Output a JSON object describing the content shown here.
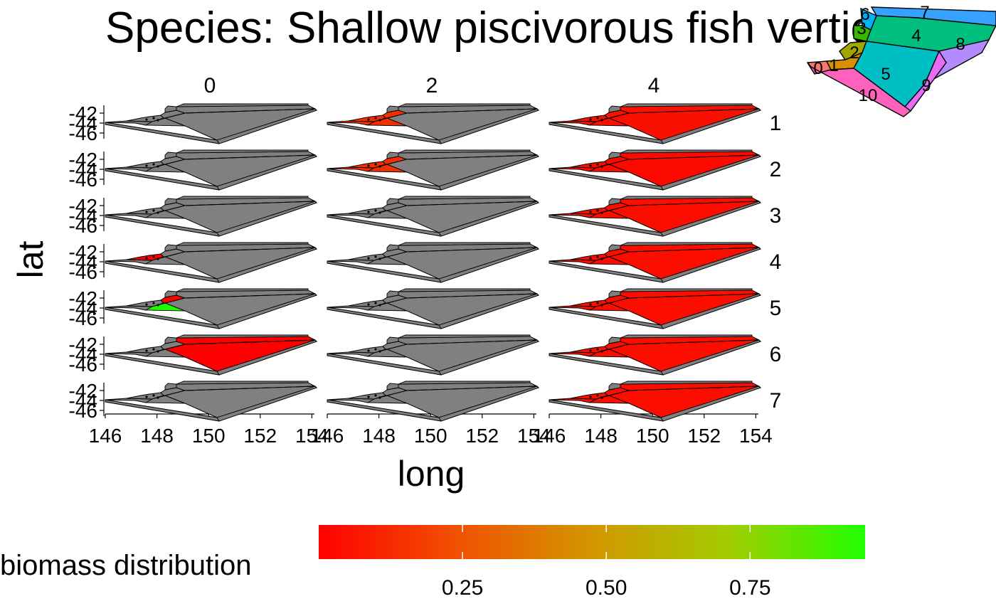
{
  "chart_data": {
    "type": "map",
    "title": "Species: Shallow piscivorous fish vertical",
    "xlabel": "long",
    "ylabel": "lat",
    "x_ticks": [
      "146",
      "148",
      "150",
      "152",
      "154"
    ],
    "y_ticks": [
      "-42",
      "-44",
      "-46"
    ],
    "xlim": [
      146,
      154.1
    ],
    "ylim": [
      -46.6,
      -41.2
    ],
    "facet_columns": [
      "0",
      "2",
      "4"
    ],
    "facet_rows": [
      "1",
      "2",
      "3",
      "4",
      "5",
      "6",
      "7"
    ],
    "legend": {
      "title": "biomass distribution",
      "placement": "bottom",
      "range": [
        0,
        0.95
      ],
      "ticks": [
        "0.25",
        "0.50",
        "0.75"
      ],
      "tick_values": [
        0.25,
        0.5,
        0.75
      ],
      "colors": [
        "#ff0000",
        "#00ff00"
      ]
    },
    "na_color": "#808080",
    "cells": [
      {
        "column": "0",
        "row": "1",
        "boxes": {}
      },
      {
        "column": "2",
        "row": "1",
        "boxes": {
          "0": 0.15,
          "1": 0.15,
          "2": 0.15,
          "3": 0.15
        }
      },
      {
        "column": "4",
        "row": "1",
        "boxes": {
          "0": 0.05,
          "1": 0.05,
          "2": 0.05,
          "3": 0.05,
          "4": 0.05,
          "5": 0.05
        }
      },
      {
        "column": "0",
        "row": "2",
        "boxes": {}
      },
      {
        "column": "2",
        "row": "2",
        "boxes": {
          "0": 0.15,
          "1": 0.15,
          "2": 0.15,
          "3": 0.15
        }
      },
      {
        "column": "4",
        "row": "2",
        "boxes": {
          "0": 0.03,
          "1": 0.03,
          "2": 0.03,
          "3": 0.03,
          "4": 0.03,
          "5": 0.03
        }
      },
      {
        "column": "0",
        "row": "3",
        "boxes": {}
      },
      {
        "column": "2",
        "row": "3",
        "boxes": {}
      },
      {
        "column": "4",
        "row": "3",
        "boxes": {
          "0": 0.04,
          "1": 0.04,
          "2": 0.04,
          "3": 0.04,
          "4": 0.04,
          "5": 0.04
        }
      },
      {
        "column": "0",
        "row": "4",
        "boxes": {
          "1": 0.0
        }
      },
      {
        "column": "2",
        "row": "4",
        "boxes": {}
      },
      {
        "column": "4",
        "row": "4",
        "boxes": {
          "0": 0.04,
          "1": 0.04,
          "2": 0.04,
          "3": 0.04,
          "4": 0.04,
          "5": 0.04
        }
      },
      {
        "column": "0",
        "row": "5",
        "boxes": {
          "3": 0.0,
          "2": 0.95
        }
      },
      {
        "column": "2",
        "row": "5",
        "boxes": {}
      },
      {
        "column": "4",
        "row": "5",
        "boxes": {
          "0": 0.04,
          "1": 0.04,
          "2": 0.04,
          "3": 0.04,
          "4": 0.04,
          "5": 0.04
        }
      },
      {
        "column": "0",
        "row": "6",
        "boxes": {
          "4": 0.0,
          "5": 0.0
        }
      },
      {
        "column": "2",
        "row": "6",
        "boxes": {}
      },
      {
        "column": "4",
        "row": "6",
        "boxes": {
          "0": 0.04,
          "1": 0.04,
          "2": 0.04,
          "3": 0.04,
          "4": 0.04,
          "5": 0.04
        }
      },
      {
        "column": "0",
        "row": "7",
        "boxes": {}
      },
      {
        "column": "2",
        "row": "7",
        "boxes": {}
      },
      {
        "column": "4",
        "row": "7",
        "boxes": {
          "0": 0.04,
          "1": 0.04,
          "2": 0.04,
          "3": 0.04,
          "4": 0.04,
          "5": 0.04
        }
      }
    ],
    "inset_map": {
      "box_labels": [
        "0",
        "1",
        "2",
        "3",
        "4",
        "5",
        "6",
        "7",
        "8",
        "9",
        "10"
      ],
      "box_colors": {
        "0": "#f8766d",
        "1": "#d89000",
        "2": "#a3a500",
        "3": "#39b600",
        "4": "#00bf7d",
        "5": "#00bfc4",
        "6": "#00b0f6",
        "7": "#35a2ff",
        "8": "#b38bff",
        "9": "#e76bf3",
        "10": "#ff62bc"
      }
    }
  }
}
